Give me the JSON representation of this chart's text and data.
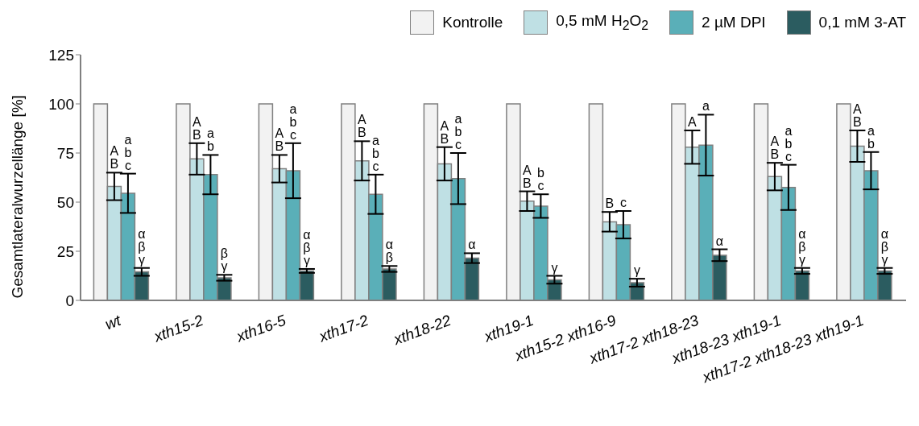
{
  "chart_data": {
    "type": "bar",
    "ylabel": "Gesamtlateralwurzellänge [%]",
    "categories": [
      "wt",
      "xth15-2",
      "xth16-5",
      "xth17-2",
      "xth18-22",
      "xth19-1",
      "xth15-2 xth16-9",
      "xth17-2 xth18-23",
      "xth18-23 xth19-1",
      "xth17-2 xth18-23 xth19-1"
    ],
    "series": [
      {
        "name": "Kontrolle",
        "color": "#f2f2f2",
        "values": [
          100,
          100,
          100,
          100,
          100,
          100,
          100,
          100,
          100,
          100
        ]
      },
      {
        "name": "0,5 mM H$_{2}$O$_{2}$",
        "color": "#bfe0e4",
        "values": [
          58,
          72,
          67,
          71,
          69.5,
          50.5,
          40,
          78,
          63,
          78.5
        ],
        "errors": [
          7,
          8,
          7,
          10,
          8.5,
          5,
          5,
          8.5,
          7,
          8
        ],
        "value_labels": [
          "A\nB",
          "A\nB",
          "A\nB",
          "A\nB",
          "A\nB",
          "A\nB",
          "B",
          "A",
          "A\nB",
          "A\nB"
        ]
      },
      {
        "name": "2 µM DPI",
        "color": "#5aafb8",
        "values": [
          54.5,
          64,
          66,
          54,
          62,
          48,
          38.5,
          79,
          57.5,
          66
        ],
        "errors": [
          10,
          10,
          14,
          10,
          13,
          6,
          7,
          15.5,
          11.5,
          9.5
        ],
        "value_labels": [
          "a\nb\nc",
          "a\nb",
          "a\nb\nc",
          "a\nb\nc",
          "a\nb\nc",
          "b\nc",
          "c",
          "a",
          "a\nb\nc",
          "a\nb"
        ]
      },
      {
        "name": "0,1 mM 3-AT",
        "color": "#2b5c60",
        "values": [
          14.5,
          11.5,
          15,
          16,
          21.5,
          10.5,
          9,
          23,
          15,
          15
        ],
        "errors": [
          2,
          1.5,
          1,
          1.5,
          2.5,
          2,
          2,
          3,
          1.5,
          1.5
        ],
        "value_labels": [
          "α\nβ\nγ",
          "β\nγ",
          "α\nβ\nγ",
          "α\nβ",
          "α",
          "γ",
          "γ",
          "α",
          "α\nβ\nγ",
          "α\nβ\nγ"
        ]
      }
    ],
    "ylim": [
      0,
      125
    ],
    "yticks": [
      0,
      25,
      50,
      75,
      100,
      125
    ],
    "legend": "top right"
  }
}
